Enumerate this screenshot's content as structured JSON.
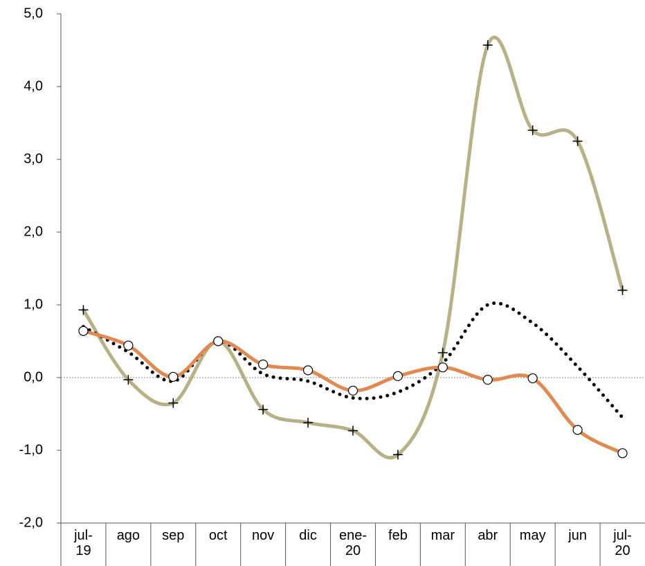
{
  "chart_data": {
    "type": "line",
    "categories": [
      "jul-19",
      "ago",
      "sep",
      "oct",
      "nov",
      "dic",
      "ene-20",
      "feb",
      "mar",
      "abr",
      "may",
      "jun",
      "jul-20"
    ],
    "series": [
      {
        "color": "#b9b186",
        "marker": "plus",
        "style": "solid",
        "values": [
          0.93,
          -0.03,
          -0.35,
          0.5,
          -0.44,
          -0.62,
          -0.73,
          -1.06,
          0.34,
          4.57,
          3.4,
          3.25,
          1.2
        ]
      },
      {
        "color": "#000000",
        "marker": "none",
        "style": "dotted",
        "values": [
          0.7,
          0.35,
          -0.05,
          0.5,
          0.05,
          -0.05,
          -0.28,
          -0.2,
          0.2,
          1.0,
          0.75,
          0.15,
          -0.55
        ]
      },
      {
        "color": "#e08a52",
        "marker": "circle",
        "style": "solid",
        "values": [
          0.64,
          0.44,
          0.01,
          0.5,
          0.18,
          0.1,
          -0.18,
          0.02,
          0.14,
          -0.03,
          -0.01,
          -0.72,
          -1.04
        ]
      }
    ],
    "ylim": [
      -2,
      5
    ],
    "yticks": [
      {
        "value": -2,
        "label": "-2,0"
      },
      {
        "value": -1,
        "label": "-1,0"
      },
      {
        "value": 0,
        "label": "0,0"
      },
      {
        "value": 1,
        "label": "1,0"
      },
      {
        "value": 2,
        "label": "2,0"
      },
      {
        "value": 3,
        "label": "3,0"
      },
      {
        "value": 4,
        "label": "4,0"
      },
      {
        "value": 5,
        "label": "5,0"
      }
    ],
    "zero_line": true
  }
}
